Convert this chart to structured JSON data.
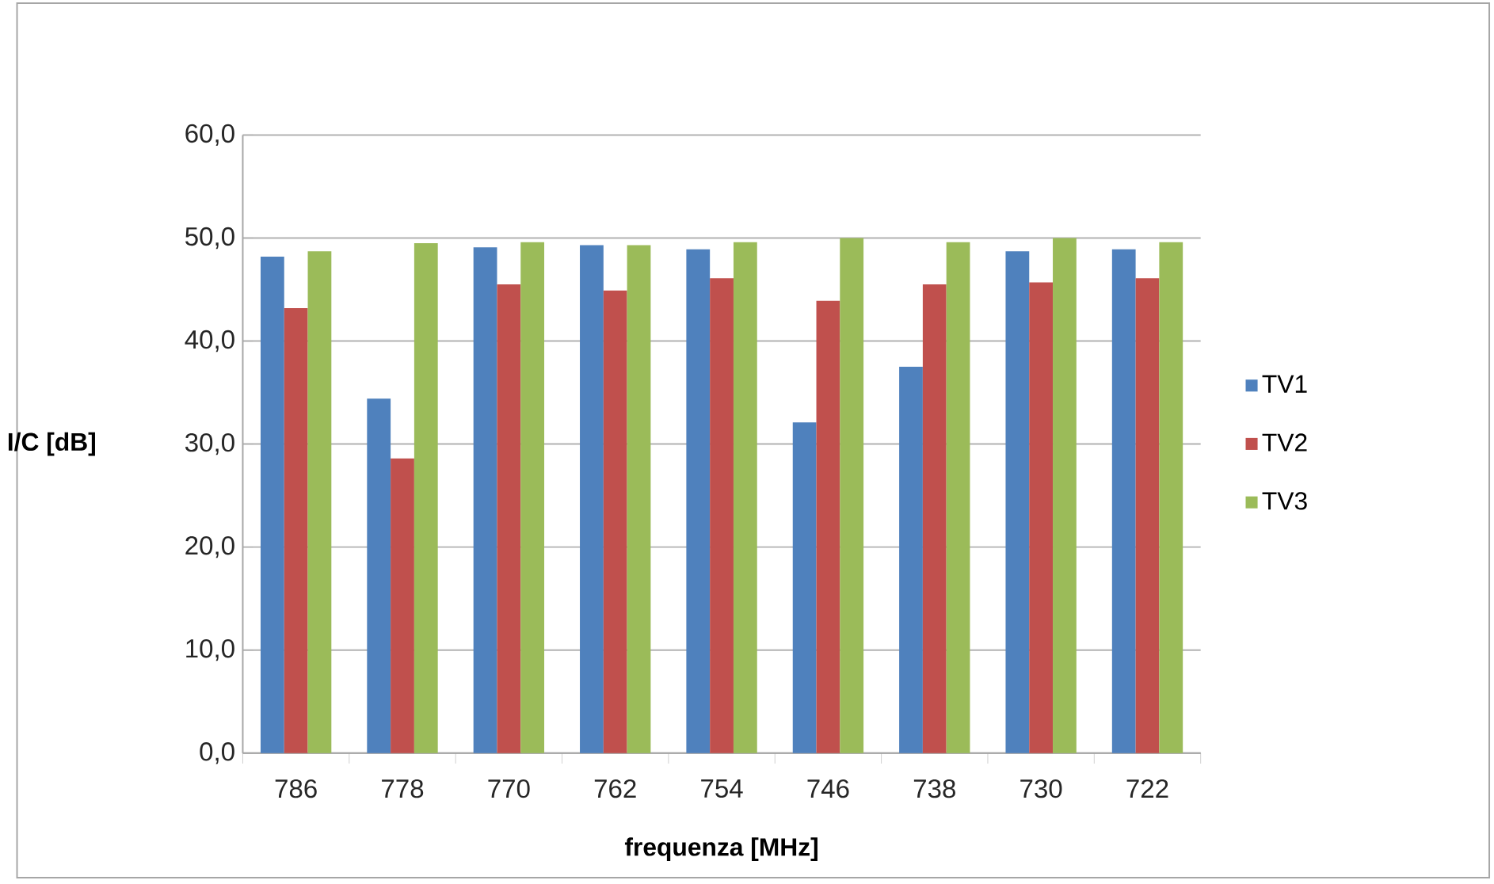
{
  "chart_data": {
    "type": "bar",
    "xlabel": "frequenza [MHz]",
    "ylabel": "I/C [dB]",
    "categories": [
      "786",
      "778",
      "770",
      "762",
      "754",
      "746",
      "738",
      "730",
      "722"
    ],
    "series": [
      {
        "name": "TV1",
        "color": "#4f81bd",
        "values": [
          48.2,
          34.4,
          49.1,
          49.3,
          48.9,
          32.1,
          37.5,
          48.7,
          48.9
        ]
      },
      {
        "name": "TV2",
        "color": "#c0504d",
        "values": [
          43.2,
          28.6,
          45.5,
          44.9,
          46.1,
          43.9,
          45.5,
          45.7,
          46.1
        ]
      },
      {
        "name": "TV3",
        "color": "#9bbb59",
        "values": [
          48.7,
          49.5,
          49.6,
          49.3,
          49.6,
          50.0,
          49.6,
          50.0,
          49.6
        ]
      }
    ],
    "ylim": [
      0,
      60
    ],
    "yticks": [
      {
        "value": 0,
        "label": "0,0"
      },
      {
        "value": 10,
        "label": "10,0"
      },
      {
        "value": 20,
        "label": "20,0"
      },
      {
        "value": 30,
        "label": "30,0"
      },
      {
        "value": 40,
        "label": "40,0"
      },
      {
        "value": 50,
        "label": "50,0"
      },
      {
        "value": 60,
        "label": "60,0"
      }
    ],
    "grid": "y",
    "legend": "right"
  }
}
